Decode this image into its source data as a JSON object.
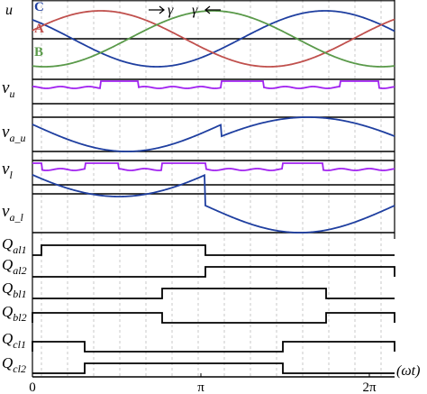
{
  "phase_panel": {
    "axis_label": "u",
    "curves": [
      "C",
      "A",
      "B"
    ],
    "gamma_left": "γ",
    "gamma_right": "γ"
  },
  "rows": [
    {
      "symbol": "v",
      "subscript": "u"
    },
    {
      "symbol": "v",
      "subscript": "a_u"
    },
    {
      "symbol": "v",
      "subscript": "l"
    },
    {
      "symbol": "v",
      "subscript": "a_l"
    },
    {
      "symbol": "Q",
      "subscript": "al1"
    },
    {
      "symbol": "Q",
      "subscript": "al2"
    },
    {
      "symbol": "Q",
      "subscript": "bl1"
    },
    {
      "symbol": "Q",
      "subscript": "bl2"
    },
    {
      "symbol": "Q",
      "subscript": "cl1"
    },
    {
      "symbol": "Q",
      "subscript": "cl2"
    }
  ],
  "x_axis": {
    "labels": [
      "0",
      "π",
      "2π"
    ],
    "variable": "(ωt)"
  }
}
